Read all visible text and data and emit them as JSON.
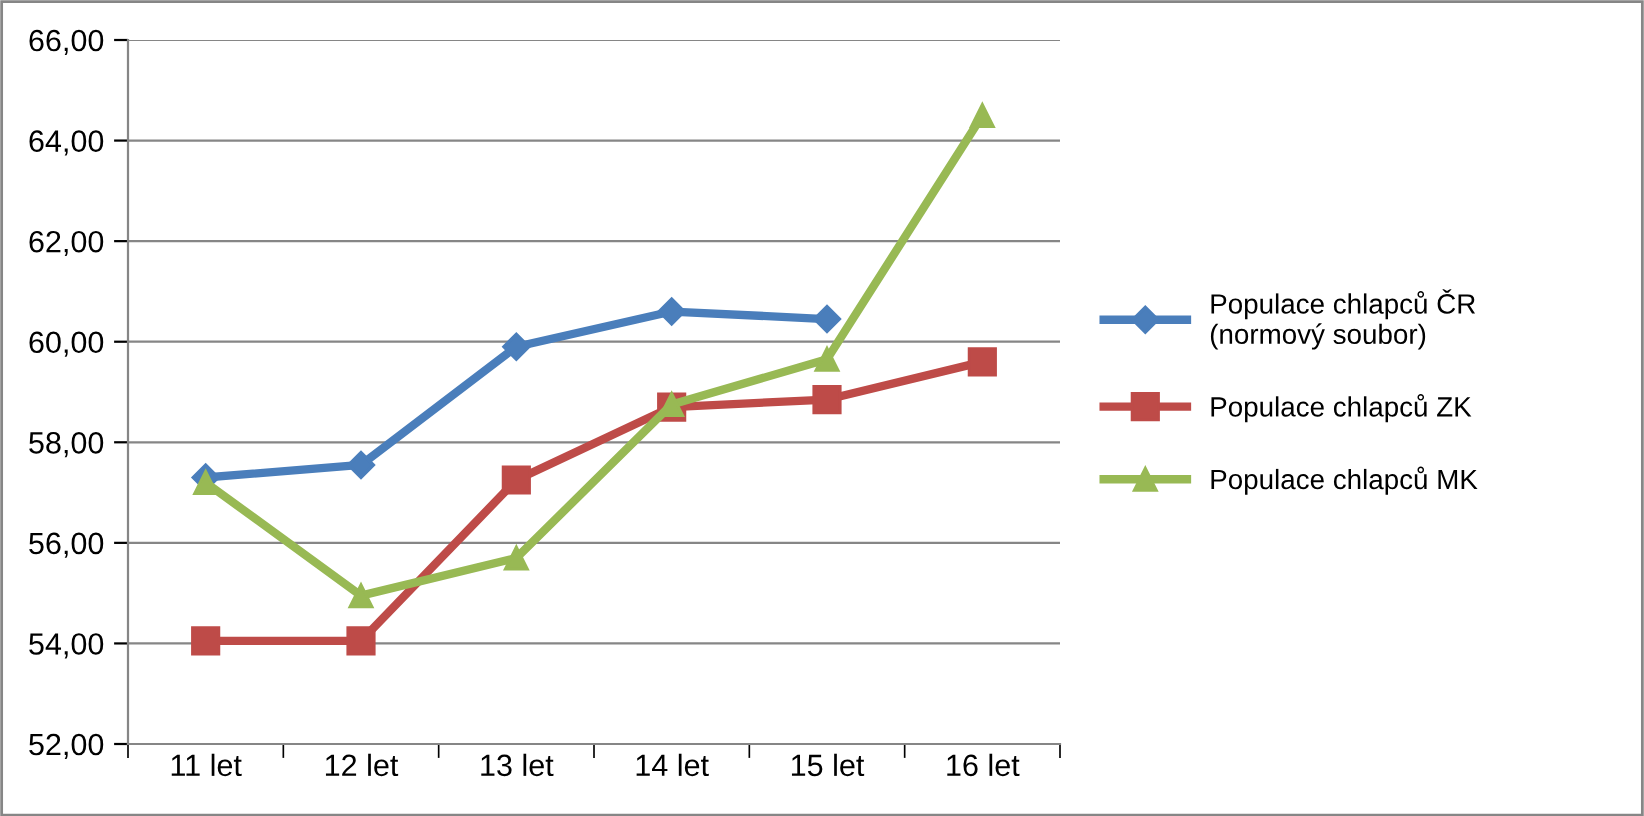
{
  "chart_data": {
    "type": "line",
    "categories": [
      "11 let",
      "12 let",
      "13 let",
      "14 let",
      "15 let",
      "16 let"
    ],
    "series": [
      {
        "name": "Populace chlapců ČR (normový soubor)",
        "color": "#4a7ebb",
        "marker": "diamond",
        "values": [
          57.3,
          57.55,
          59.9,
          60.6,
          60.45,
          null
        ]
      },
      {
        "name": "Populace chlapců ZK",
        "color": "#be4b48",
        "marker": "square",
        "values": [
          54.05,
          54.05,
          57.25,
          58.7,
          58.85,
          59.6
        ]
      },
      {
        "name": "Populace chlapců MK",
        "color": "#98b954",
        "marker": "triangle",
        "values": [
          57.2,
          54.95,
          55.7,
          58.75,
          59.65,
          64.5
        ]
      }
    ],
    "ylim": [
      52,
      66
    ],
    "yticks": [
      {
        "value": 52,
        "label": "52,00"
      },
      {
        "value": 54,
        "label": "54,00"
      },
      {
        "value": 56,
        "label": "56,00"
      },
      {
        "value": 58,
        "label": "58,00"
      },
      {
        "value": 60,
        "label": "60,00"
      },
      {
        "value": 62,
        "label": "62,00"
      },
      {
        "value": 64,
        "label": "64,00"
      },
      {
        "value": 66,
        "label": "66,00"
      }
    ],
    "grid": "y",
    "legend": "right",
    "line_style": "solid"
  }
}
